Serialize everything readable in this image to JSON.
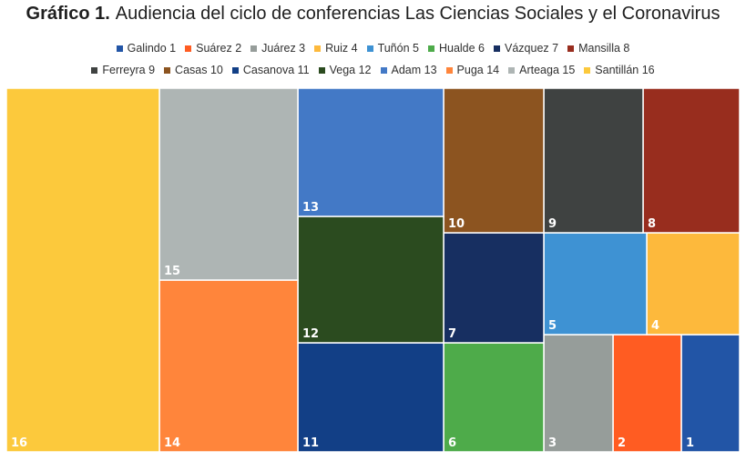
{
  "title": {
    "prefix": "Gráfico 1.",
    "text": "Audiencia del ciclo de conferencias Las Ciencias Sociales y el Coronavirus"
  },
  "chart_data": {
    "type": "treemap",
    "title": "Gráfico 1. Audiencia del ciclo de conferencias Las Ciencias Sociales y el Coronavirus",
    "legend_position": "top",
    "series": [
      {
        "id": 1,
        "name": "Galindo 1",
        "label": "1",
        "value": 27,
        "color": "#2255A6"
      },
      {
        "id": 2,
        "name": "Suárez 2",
        "label": "2",
        "value": 30,
        "color": "#FF5C22"
      },
      {
        "id": 3,
        "name": "Juárez 3",
        "label": "3",
        "value": 31,
        "color": "#969D9A"
      },
      {
        "id": 4,
        "name": "Ruiz 4",
        "label": "4",
        "value": 35,
        "color": "#FDB93C"
      },
      {
        "id": 5,
        "name": "Tuñón 5",
        "label": "5",
        "value": 42,
        "color": "#3E92D3"
      },
      {
        "id": 6,
        "name": "Hualde 6",
        "label": "6",
        "value": 47,
        "color": "#4EAB4A"
      },
      {
        "id": 7,
        "name": "Vázquez 7",
        "label": "7",
        "value": 48,
        "color": "#172F61"
      },
      {
        "id": 8,
        "name": "Mansilla 8",
        "label": "8",
        "value": 56,
        "color": "#982D1E"
      },
      {
        "id": 9,
        "name": "Ferreyra 9",
        "label": "9",
        "value": 60,
        "color": "#3F4241"
      },
      {
        "id": 10,
        "name": "Casas 10",
        "label": "10",
        "value": 58,
        "color": "#8C5420"
      },
      {
        "id": 11,
        "name": "Casanova 11",
        "label": "11",
        "value": 63,
        "color": "#123F86"
      },
      {
        "id": 12,
        "name": "Vega 12",
        "label": "12",
        "value": 65,
        "color": "#2B4B1F"
      },
      {
        "id": 13,
        "name": "Adam 13",
        "label": "13",
        "value": 70,
        "color": "#4379C6"
      },
      {
        "id": 14,
        "name": "Puga 14",
        "label": "14",
        "value": 100,
        "color": "#FF853B"
      },
      {
        "id": 15,
        "name": "Arteaga 15",
        "label": "15",
        "value": 110,
        "color": "#AEB5B4"
      },
      {
        "id": 16,
        "name": "Santillán 16",
        "label": "16",
        "value": 215,
        "color": "#FCC93C"
      }
    ]
  }
}
